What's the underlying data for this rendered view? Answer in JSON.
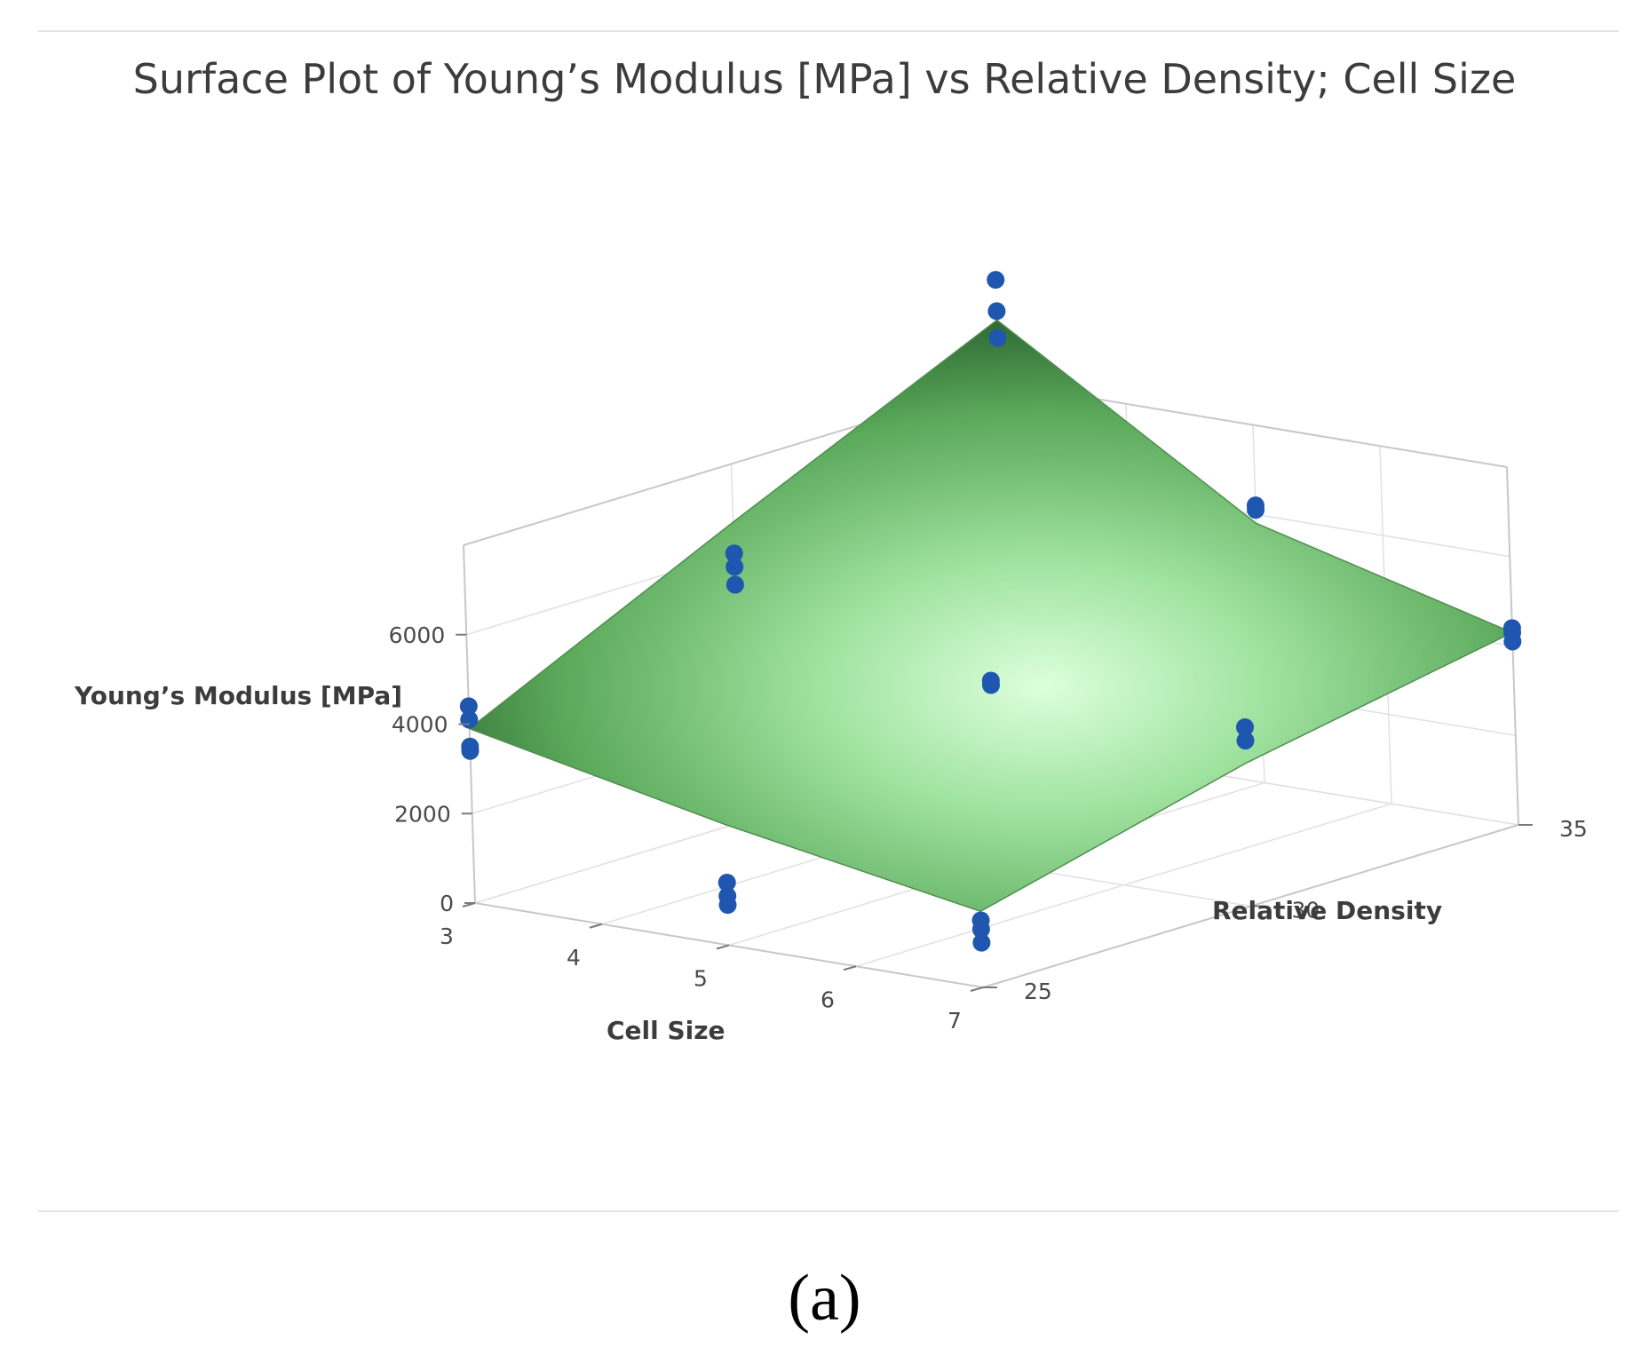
{
  "chart_data": {
    "type": "surface",
    "title": "Surface Plot of Young’s Modulus [MPa] vs Relative Density; Cell Size",
    "xlabel": "Cell Size",
    "ylabel": "Relative Density",
    "zlabel": "Young’s Modulus [MPa]",
    "x_ticks": [
      "3",
      "4",
      "5",
      "6",
      "7"
    ],
    "y_ticks": [
      "25",
      "30",
      "35"
    ],
    "z_ticks": [
      "0",
      "2000",
      "4000",
      "6000"
    ],
    "xlim": [
      3,
      7
    ],
    "ylim": [
      25,
      35
    ],
    "zlim": [
      0,
      8000
    ],
    "surface_color": "#5aa85a",
    "highlight_color": "#d8ffd8",
    "point_color": "#1f56b0",
    "surface": {
      "x": [
        3,
        5,
        7
      ],
      "y": [
        25,
        30,
        35
      ],
      "z": [
        [
          3900,
          2700,
          1700
        ],
        [
          6700,
          3900,
          3200
        ],
        [
          9400,
          5800,
          4300
        ]
      ]
    },
    "points": [
      {
        "x": 3,
        "y": 25,
        "z": [
          4400,
          4100,
          3500,
          3400
        ]
      },
      {
        "x": 5,
        "y": 25,
        "z": [
          1400,
          1100,
          900
        ]
      },
      {
        "x": 7,
        "y": 25,
        "z": [
          1500,
          1300,
          1000
        ]
      },
      {
        "x": 3,
        "y": 30,
        "z": [
          6000,
          5700,
          5300
        ]
      },
      {
        "x": 5,
        "y": 30,
        "z": [
          4100,
          4000
        ]
      },
      {
        "x": 7,
        "y": 30,
        "z": [
          4000,
          3700
        ]
      },
      {
        "x": 3,
        "y": 35,
        "z": [
          10300,
          9600,
          9000
        ]
      },
      {
        "x": 5,
        "y": 35,
        "z": [
          6200,
          6100
        ]
      },
      {
        "x": 7,
        "y": 35,
        "z": [
          4400,
          4300,
          4100
        ]
      }
    ]
  },
  "panel_label": "(a)"
}
